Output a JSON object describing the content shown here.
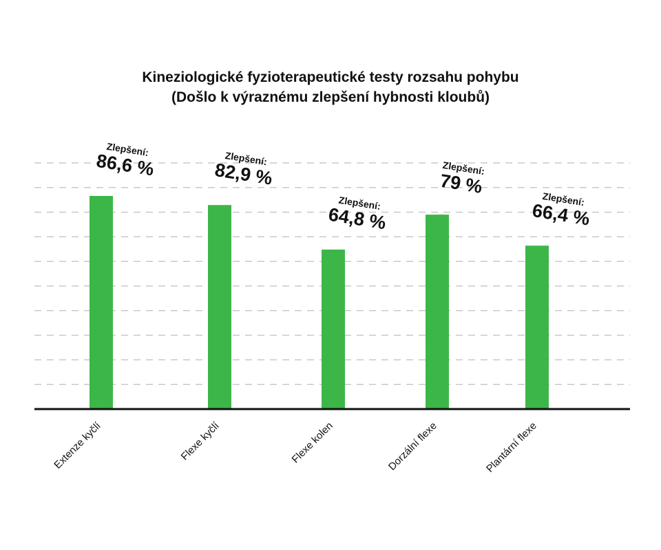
{
  "chart_data": {
    "type": "bar",
    "title": "Kineziologické fyzioterapeutické testy rozsahu pohybu",
    "subtitle": "(Došlo k výraznému zlepšení hybnosti kloubů)",
    "categories": [
      "Extenze kyčlí",
      "Flexe kyčlí",
      "Flexe kolen",
      "Dorzální flexe",
      "Plantární flexe"
    ],
    "values": [
      86.6,
      82.9,
      64.8,
      79,
      66.4
    ],
    "data_labels": {
      "prefix": "Zlepšení:",
      "values": [
        "86,6 %",
        "82,9 %",
        "64,8 %",
        "79 %",
        "66,4 %"
      ]
    },
    "xlabel": "",
    "ylabel": "",
    "ylim": [
      0,
      100
    ],
    "grid": true,
    "legend": "none",
    "colors": {
      "bar": "#3db649",
      "grid": "#c8c8c8",
      "axis": "#111111",
      "text": "#111111"
    }
  }
}
